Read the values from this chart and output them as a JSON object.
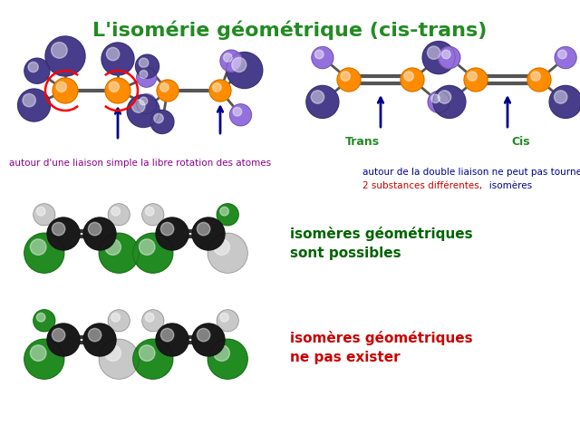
{
  "title": "L'isomérie géométrique (cis-trans)",
  "title_color": "#228B22",
  "title_fontsize": 16,
  "bg_color": "#ffffff",
  "text_simple_label": "autour d'une liaison simple la libre rotation des atomes",
  "text_simple_color": "#8B008B",
  "text_double_line1": "autour de la double liaison ne peut pas tourner",
  "text_double_line2": "2 substances différentes,",
  "text_double_line2b": "   isomères",
  "text_double_color": "#00008B",
  "text_double_color2": "#CC0000",
  "text_trans": "Trans",
  "text_cis": "Cis",
  "label_color": "#228B22",
  "text_isomeres1_line1": "isomères géométriques",
  "text_isomeres1_line2": "sont possibles",
  "text_isomeres1_color": "#006400",
  "text_isomeres2_line1": "isomères géométriques",
  "text_isomeres2_line2": "ne pas exister",
  "text_isomeres2_color": "#CC0000",
  "purple_dark": "#483D8B",
  "purple_light": "#9370DB",
  "orange": "#FF8C00",
  "green_dark": "#228B22",
  "black_atom": "#1a1a1a",
  "white_atom": "#c8c8c8",
  "bond_color": "#444444"
}
